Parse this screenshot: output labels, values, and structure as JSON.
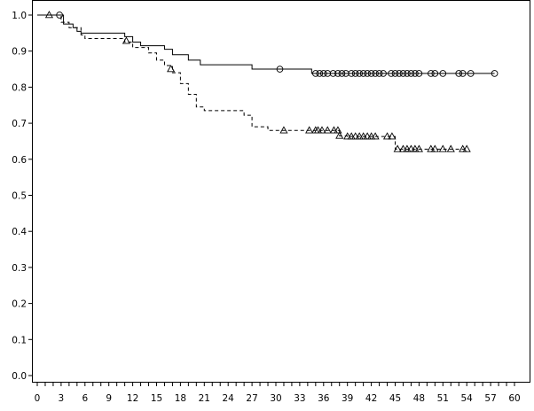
{
  "chart_data": {
    "type": "line",
    "title": "",
    "xlabel": "",
    "ylabel": "",
    "xlim": [
      0,
      60
    ],
    "ylim": [
      0.0,
      1.0
    ],
    "xticks": [
      0,
      1,
      2,
      3,
      4,
      5,
      6,
      7,
      8,
      9,
      10,
      11,
      12,
      13,
      14,
      15,
      16,
      17,
      18,
      19,
      20,
      21,
      22,
      23,
      24,
      25,
      26,
      27,
      28,
      29,
      30,
      31,
      32,
      33,
      34,
      35,
      36,
      37,
      38,
      39,
      40,
      41,
      42,
      43,
      44,
      45,
      46,
      47,
      48,
      49,
      50,
      51,
      52,
      53,
      54,
      55,
      56,
      57,
      58,
      59,
      60
    ],
    "xtick_labels": [
      "0",
      "3",
      "6",
      "9",
      "12",
      "15",
      "18",
      "21",
      "24",
      "27",
      "30",
      "33",
      "36",
      "39",
      "42",
      "45",
      "48",
      "51",
      "54",
      "57",
      "60"
    ],
    "ytick_labels": [
      "0.0",
      "0.1",
      "0.2",
      "0.3",
      "0.4",
      "0.5",
      "0.6",
      "0.7",
      "0.8",
      "0.9",
      "1.0"
    ],
    "grid": false,
    "legend": "none",
    "series": [
      {
        "style": "solid",
        "marker": "circle",
        "steps": [
          [
            0,
            1.0
          ],
          [
            3.3,
            0.975
          ],
          [
            4.5,
            0.965
          ],
          [
            5.0,
            0.955
          ],
          [
            5.5,
            0.95
          ],
          [
            11.0,
            0.94
          ],
          [
            12.0,
            0.925
          ],
          [
            13.0,
            0.915
          ],
          [
            16.0,
            0.905
          ],
          [
            17.0,
            0.89
          ],
          [
            19.0,
            0.875
          ],
          [
            20.5,
            0.862
          ],
          [
            27.0,
            0.85
          ],
          [
            34.5,
            0.838
          ],
          [
            57.5,
            0.838
          ]
        ],
        "censored": [
          [
            2.8,
            1.0
          ],
          [
            30.5,
            0.85
          ],
          [
            35.0,
            0.838
          ],
          [
            35.5,
            0.838
          ],
          [
            36.0,
            0.838
          ],
          [
            36.5,
            0.838
          ],
          [
            37.2,
            0.838
          ],
          [
            37.8,
            0.838
          ],
          [
            38.3,
            0.838
          ],
          [
            38.8,
            0.838
          ],
          [
            39.5,
            0.838
          ],
          [
            40.0,
            0.838
          ],
          [
            40.5,
            0.838
          ],
          [
            41.0,
            0.838
          ],
          [
            41.5,
            0.838
          ],
          [
            42.0,
            0.838
          ],
          [
            42.5,
            0.838
          ],
          [
            43.0,
            0.838
          ],
          [
            43.5,
            0.838
          ],
          [
            44.5,
            0.838
          ],
          [
            45.0,
            0.838
          ],
          [
            45.5,
            0.838
          ],
          [
            46.0,
            0.838
          ],
          [
            46.5,
            0.838
          ],
          [
            47.0,
            0.838
          ],
          [
            47.5,
            0.838
          ],
          [
            48.0,
            0.838
          ],
          [
            49.5,
            0.838
          ],
          [
            50.0,
            0.838
          ],
          [
            51.0,
            0.838
          ],
          [
            53.0,
            0.838
          ],
          [
            53.5,
            0.838
          ],
          [
            54.5,
            0.838
          ],
          [
            57.5,
            0.838
          ]
        ]
      },
      {
        "style": "dashed",
        "marker": "triangle",
        "steps": [
          [
            0,
            1.0
          ],
          [
            3.0,
            0.98
          ],
          [
            4.0,
            0.965
          ],
          [
            5.5,
            0.945
          ],
          [
            6.0,
            0.935
          ],
          [
            11.0,
            0.925
          ],
          [
            12.0,
            0.91
          ],
          [
            14.0,
            0.895
          ],
          [
            15.0,
            0.875
          ],
          [
            16.0,
            0.86
          ],
          [
            17.0,
            0.84
          ],
          [
            18.0,
            0.81
          ],
          [
            19.0,
            0.78
          ],
          [
            20.0,
            0.745
          ],
          [
            21.0,
            0.735
          ],
          [
            26.0,
            0.722
          ],
          [
            27.0,
            0.69
          ],
          [
            29.0,
            0.68
          ],
          [
            38.0,
            0.665
          ],
          [
            39.0,
            0.663
          ],
          [
            45.0,
            0.628
          ],
          [
            54.0,
            0.628
          ]
        ],
        "censored": [
          [
            1.5,
            1.0
          ],
          [
            11.2,
            0.928
          ],
          [
            16.8,
            0.85
          ],
          [
            31.0,
            0.68
          ],
          [
            34.2,
            0.68
          ],
          [
            35.0,
            0.68
          ],
          [
            35.3,
            0.68
          ],
          [
            35.8,
            0.68
          ],
          [
            36.5,
            0.68
          ],
          [
            37.3,
            0.68
          ],
          [
            37.8,
            0.68
          ],
          [
            38.0,
            0.665
          ],
          [
            39.0,
            0.663
          ],
          [
            39.5,
            0.663
          ],
          [
            40.0,
            0.663
          ],
          [
            40.5,
            0.663
          ],
          [
            41.0,
            0.663
          ],
          [
            41.5,
            0.663
          ],
          [
            42.0,
            0.663
          ],
          [
            42.5,
            0.663
          ],
          [
            44.0,
            0.663
          ],
          [
            44.6,
            0.663
          ],
          [
            45.3,
            0.628
          ],
          [
            46.0,
            0.628
          ],
          [
            46.5,
            0.628
          ],
          [
            47.0,
            0.628
          ],
          [
            47.5,
            0.628
          ],
          [
            48.0,
            0.628
          ],
          [
            49.5,
            0.628
          ],
          [
            50.0,
            0.628
          ],
          [
            51.0,
            0.628
          ],
          [
            52.0,
            0.628
          ],
          [
            53.5,
            0.628
          ],
          [
            54.0,
            0.628
          ]
        ]
      }
    ]
  }
}
